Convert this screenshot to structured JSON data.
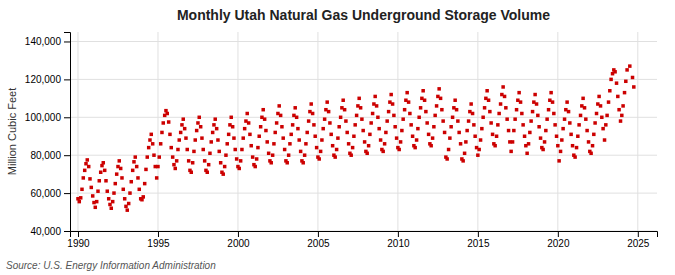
{
  "chart_data": {
    "type": "scatter",
    "title": "Monthly Utah Natural Gas Underground Storage Volume",
    "y_label": "Million Cubic Feet",
    "annotations": [
      "Source: U.S. Energy Information Administration"
    ],
    "color": "#cc0000",
    "marker": "square",
    "grid": true,
    "xlim": [
      1989.5,
      2026.2
    ],
    "xticks": [
      1990,
      1995,
      2000,
      2005,
      2010,
      2015,
      2020,
      2025
    ],
    "ylim": [
      40000,
      145000
    ],
    "yticks": [
      {
        "value": 40000,
        "label": "40,000"
      },
      {
        "value": 60000,
        "label": "60,000"
      },
      {
        "value": 80000,
        "label": "80,000"
      },
      {
        "value": 100000,
        "label": "100,000"
      },
      {
        "value": 120000,
        "label": "120,000"
      },
      {
        "value": 140000,
        "label": "140,000"
      }
    ],
    "x": [
      1990.0,
      1990.08,
      1990.17,
      1990.25,
      1990.33,
      1990.42,
      1990.5,
      1990.58,
      1990.67,
      1990.75,
      1990.83,
      1990.92,
      1991.0,
      1991.08,
      1991.17,
      1991.25,
      1991.33,
      1991.42,
      1991.5,
      1991.58,
      1991.67,
      1991.75,
      1991.83,
      1991.92,
      1992.0,
      1992.08,
      1992.17,
      1992.25,
      1992.33,
      1992.42,
      1992.5,
      1992.58,
      1992.67,
      1992.75,
      1992.83,
      1992.92,
      1993.0,
      1993.08,
      1993.17,
      1993.25,
      1993.33,
      1993.42,
      1993.5,
      1993.58,
      1993.67,
      1993.75,
      1993.83,
      1993.92,
      1994.0,
      1994.08,
      1994.17,
      1994.25,
      1994.33,
      1994.42,
      1994.5,
      1994.58,
      1994.67,
      1994.75,
      1994.83,
      1994.92,
      1995.0,
      1995.08,
      1995.17,
      1995.25,
      1995.33,
      1995.42,
      1995.5,
      1995.58,
      1995.67,
      1995.75,
      1995.83,
      1995.92,
      1996.0,
      1996.08,
      1996.17,
      1996.25,
      1996.33,
      1996.42,
      1996.5,
      1996.58,
      1996.67,
      1996.75,
      1996.83,
      1996.92,
      1997.0,
      1997.08,
      1997.17,
      1997.25,
      1997.33,
      1997.42,
      1997.5,
      1997.58,
      1997.67,
      1997.75,
      1997.83,
      1997.92,
      1998.0,
      1998.08,
      1998.17,
      1998.25,
      1998.33,
      1998.42,
      1998.5,
      1998.58,
      1998.67,
      1998.75,
      1998.83,
      1998.92,
      1999.0,
      1999.08,
      1999.17,
      1999.25,
      1999.33,
      1999.42,
      1999.5,
      1999.58,
      1999.67,
      1999.75,
      1999.83,
      1999.92,
      2000.0,
      2000.08,
      2000.17,
      2000.25,
      2000.33,
      2000.42,
      2000.5,
      2000.58,
      2000.67,
      2000.75,
      2000.83,
      2000.92,
      2001.0,
      2001.08,
      2001.17,
      2001.25,
      2001.33,
      2001.42,
      2001.5,
      2001.58,
      2001.67,
      2001.75,
      2001.83,
      2001.92,
      2002.0,
      2002.08,
      2002.17,
      2002.25,
      2002.33,
      2002.42,
      2002.5,
      2002.58,
      2002.67,
      2002.75,
      2002.83,
      2002.92,
      2003.0,
      2003.08,
      2003.17,
      2003.25,
      2003.33,
      2003.42,
      2003.5,
      2003.58,
      2003.67,
      2003.75,
      2003.83,
      2003.92,
      2004.0,
      2004.08,
      2004.17,
      2004.25,
      2004.33,
      2004.42,
      2004.5,
      2004.58,
      2004.67,
      2004.75,
      2004.83,
      2004.92,
      2005.0,
      2005.08,
      2005.17,
      2005.25,
      2005.33,
      2005.42,
      2005.5,
      2005.58,
      2005.67,
      2005.75,
      2005.83,
      2005.92,
      2006.0,
      2006.08,
      2006.17,
      2006.25,
      2006.33,
      2006.42,
      2006.5,
      2006.58,
      2006.67,
      2006.75,
      2006.83,
      2006.92,
      2007.0,
      2007.08,
      2007.17,
      2007.25,
      2007.33,
      2007.42,
      2007.5,
      2007.58,
      2007.67,
      2007.75,
      2007.83,
      2007.92,
      2008.0,
      2008.08,
      2008.17,
      2008.25,
      2008.33,
      2008.42,
      2008.5,
      2008.58,
      2008.67,
      2008.75,
      2008.83,
      2008.92,
      2009.0,
      2009.08,
      2009.17,
      2009.25,
      2009.33,
      2009.42,
      2009.5,
      2009.58,
      2009.67,
      2009.75,
      2009.83,
      2009.92,
      2010.0,
      2010.08,
      2010.17,
      2010.25,
      2010.33,
      2010.42,
      2010.5,
      2010.58,
      2010.67,
      2010.75,
      2010.83,
      2010.92,
      2011.0,
      2011.08,
      2011.17,
      2011.25,
      2011.33,
      2011.42,
      2011.5,
      2011.58,
      2011.67,
      2011.75,
      2011.83,
      2011.92,
      2012.0,
      2012.08,
      2012.17,
      2012.25,
      2012.33,
      2012.42,
      2012.5,
      2012.58,
      2012.67,
      2012.75,
      2012.83,
      2012.92,
      2013.0,
      2013.08,
      2013.17,
      2013.25,
      2013.33,
      2013.42,
      2013.5,
      2013.58,
      2013.67,
      2013.75,
      2013.83,
      2013.92,
      2014.0,
      2014.08,
      2014.17,
      2014.25,
      2014.33,
      2014.42,
      2014.5,
      2014.58,
      2014.67,
      2014.75,
      2014.83,
      2014.92,
      2015.0,
      2015.08,
      2015.17,
      2015.25,
      2015.33,
      2015.42,
      2015.5,
      2015.58,
      2015.67,
      2015.75,
      2015.83,
      2015.92,
      2016.0,
      2016.08,
      2016.17,
      2016.25,
      2016.33,
      2016.42,
      2016.5,
      2016.58,
      2016.67,
      2016.75,
      2016.83,
      2016.92,
      2017.0,
      2017.08,
      2017.17,
      2017.25,
      2017.33,
      2017.42,
      2017.5,
      2017.58,
      2017.67,
      2017.75,
      2017.83,
      2017.92,
      2018.0,
      2018.08,
      2018.17,
      2018.25,
      2018.33,
      2018.42,
      2018.5,
      2018.58,
      2018.67,
      2018.75,
      2018.83,
      2018.92,
      2019.0,
      2019.08,
      2019.17,
      2019.25,
      2019.33,
      2019.42,
      2019.5,
      2019.58,
      2019.67,
      2019.75,
      2019.83,
      2019.92,
      2020.0,
      2020.08,
      2020.17,
      2020.25,
      2020.33,
      2020.42,
      2020.5,
      2020.58,
      2020.67,
      2020.75,
      2020.83,
      2020.92,
      2021.0,
      2021.08,
      2021.17,
      2021.25,
      2021.33,
      2021.42,
      2021.5,
      2021.58,
      2021.67,
      2021.75,
      2021.83,
      2021.92,
      2022.0,
      2022.08,
      2022.17,
      2022.25,
      2022.33,
      2022.42,
      2022.5,
      2022.58,
      2022.67,
      2022.75,
      2022.83,
      2022.92,
      2023.0,
      2023.08,
      2023.17,
      2023.25,
      2023.33,
      2023.42,
      2023.5,
      2023.58,
      2023.67,
      2023.75,
      2023.83,
      2023.92,
      2024.0,
      2024.08,
      2024.17,
      2024.25,
      2024.33,
      2024.5,
      2024.67,
      2024.75
    ],
    "values": [
      57000,
      55500,
      57500,
      62000,
      68000,
      72000,
      75500,
      77500,
      74000,
      67500,
      63000,
      58500,
      55000,
      52500,
      55500,
      61000,
      66500,
      71000,
      74500,
      76000,
      72000,
      66500,
      61000,
      57000,
      54000,
      52000,
      55500,
      60000,
      65000,
      70000,
      74000,
      77000,
      73000,
      68000,
      62000,
      57000,
      53000,
      51000,
      54500,
      60000,
      66000,
      72000,
      76500,
      79000,
      74000,
      68000,
      62000,
      57000,
      56500,
      58000,
      65000,
      72500,
      79000,
      84000,
      88000,
      91000,
      86000,
      80000,
      74000,
      68000,
      74000,
      79000,
      86000,
      92000,
      97000,
      101000,
      103500,
      102000,
      97500,
      91000,
      84000,
      79000,
      75000,
      73000,
      77000,
      83000,
      88000,
      92000,
      96000,
      99000,
      94000,
      89000,
      83000,
      77000,
      72000,
      71000,
      76000,
      82000,
      88000,
      93000,
      97000,
      100000,
      95000,
      89000,
      83000,
      77000,
      72000,
      71000,
      75000,
      81000,
      87000,
      92000,
      96000,
      99000,
      94000,
      88000,
      82000,
      76000,
      71000,
      70000,
      74000,
      80000,
      86000,
      91000,
      96000,
      100000,
      95000,
      89000,
      83000,
      78000,
      74000,
      73000,
      77000,
      83000,
      89000,
      94000,
      98000,
      102000,
      97000,
      91000,
      85000,
      79000,
      75000,
      74000,
      78000,
      84000,
      90000,
      95000,
      100000,
      104000,
      99000,
      93000,
      87000,
      81000,
      77000,
      76000,
      80000,
      86000,
      92000,
      97000,
      102000,
      106000,
      101000,
      95000,
      89000,
      83000,
      77000,
      76000,
      80000,
      86000,
      91000,
      96000,
      101000,
      105000,
      100000,
      94000,
      88000,
      82000,
      77000,
      76000,
      80000,
      86000,
      92000,
      98000,
      103000,
      107000,
      102000,
      96000,
      90000,
      84000,
      79000,
      78000,
      82000,
      88000,
      94000,
      99000,
      104000,
      108000,
      103000,
      97000,
      91000,
      85000,
      80000,
      79000,
      83000,
      89000,
      95000,
      100000,
      105000,
      109000,
      104000,
      98000,
      92000,
      86000,
      81000,
      80000,
      84000,
      90000,
      96000,
      101000,
      106000,
      110000,
      105000,
      99000,
      93000,
      87000,
      82000,
      81000,
      85000,
      91000,
      97000,
      102000,
      107000,
      111000,
      106000,
      100000,
      94000,
      88000,
      83000,
      82000,
      86000,
      92000,
      98000,
      103000,
      108000,
      112000,
      107000,
      101000,
      95000,
      89000,
      84000,
      83000,
      87000,
      93000,
      99000,
      104000,
      109000,
      113000,
      108000,
      102000,
      96000,
      90000,
      85000,
      84000,
      88000,
      94000,
      100000,
      105000,
      110000,
      114000,
      109000,
      103000,
      97000,
      91000,
      86000,
      85000,
      89000,
      95000,
      101000,
      106000,
      111000,
      115000,
      110000,
      104000,
      98000,
      92000,
      79000,
      78000,
      83000,
      89000,
      95000,
      100000,
      105000,
      109000,
      104000,
      98000,
      92000,
      86000,
      78000,
      77000,
      81000,
      87000,
      93000,
      98000,
      103000,
      107000,
      102000,
      96000,
      90000,
      84000,
      80000,
      83000,
      88000,
      94000,
      100000,
      105000,
      110000,
      114000,
      109000,
      103000,
      97000,
      91000,
      86000,
      85000,
      90000,
      96000,
      102000,
      107000,
      112000,
      116000,
      111000,
      105000,
      99000,
      93000,
      87000,
      82000,
      87000,
      93000,
      99000,
      104000,
      109000,
      113000,
      108000,
      102000,
      96000,
      90000,
      85000,
      81000,
      86000,
      92000,
      98000,
      103000,
      108000,
      112000,
      107000,
      101000,
      95000,
      89000,
      84000,
      83000,
      87000,
      93000,
      99000,
      104000,
      109000,
      113000,
      108000,
      102000,
      96000,
      90000,
      85000,
      77000,
      82000,
      88000,
      94000,
      99000,
      104000,
      108000,
      103000,
      97000,
      91000,
      85000,
      80000,
      79000,
      84000,
      90000,
      96000,
      101000,
      106000,
      110000,
      105000,
      99000,
      93000,
      87000,
      82000,
      81000,
      85000,
      91000,
      97000,
      102000,
      107000,
      111000,
      106000,
      100000,
      94000,
      88000,
      96000,
      101000,
      108000,
      114000,
      120000,
      123000,
      125000,
      124000,
      118000,
      111000,
      104000,
      98000,
      101000,
      106000,
      113000,
      119000,
      125000,
      127000,
      121000,
      116000
    ]
  }
}
